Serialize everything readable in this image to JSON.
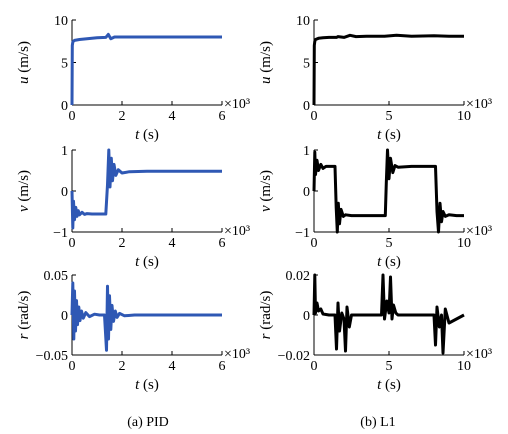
{
  "captions": {
    "left": "(a) PID",
    "right": "(b) L1"
  },
  "colors": {
    "pid": "#2f58b4",
    "l1": "#000000"
  },
  "chart_data": [
    {
      "id": "pid-u",
      "type": "line",
      "color": "#2f58b4",
      "xlabel_var": "t",
      "xlabel_unit": " (s)",
      "ylabel_var": "u",
      "ylabel_unit": " (m/s)",
      "xlim": [
        0,
        6
      ],
      "ylim": [
        0,
        10
      ],
      "xticks": [
        0,
        2,
        4,
        6
      ],
      "yticks": [
        0,
        5,
        10
      ],
      "x_multiplier": "×10³",
      "series": [
        {
          "x": [
            0,
            0.01,
            0.03,
            0.05,
            0.1,
            0.3,
            0.6,
            1.0,
            1.35,
            1.45,
            1.55,
            1.7,
            2.0,
            3.0,
            4.0,
            5.0,
            6.0
          ],
          "y": [
            0,
            7.0,
            7.4,
            7.5,
            7.6,
            7.7,
            7.8,
            7.9,
            7.95,
            8.3,
            7.8,
            8.0,
            8.0,
            8.0,
            8.0,
            8.0,
            8.0
          ]
        }
      ]
    },
    {
      "id": "pid-v",
      "type": "line",
      "color": "#2f58b4",
      "xlabel_var": "t",
      "xlabel_unit": " (s)",
      "ylabel_var": "v",
      "ylabel_unit": " (m/s)",
      "xlim": [
        0,
        6
      ],
      "ylim": [
        -1,
        1
      ],
      "xticks": [
        0,
        2,
        4,
        6
      ],
      "yticks": [
        -1,
        0,
        1
      ],
      "x_multiplier": "×10³",
      "series": [
        {
          "x": [
            0,
            0.03,
            0.06,
            0.1,
            0.15,
            0.2,
            0.25,
            0.3,
            0.4,
            0.5,
            0.6,
            0.8,
            1.0,
            1.2,
            1.35,
            1.42,
            1.47,
            1.52,
            1.57,
            1.62,
            1.68,
            1.75,
            1.85,
            2.0,
            2.3,
            3.0,
            4.0,
            5.0,
            6.0
          ],
          "y": [
            0,
            -0.9,
            -0.25,
            -0.7,
            -0.4,
            -0.62,
            -0.48,
            -0.58,
            -0.52,
            -0.57,
            -0.55,
            -0.56,
            -0.56,
            -0.56,
            -0.56,
            0.15,
            1.0,
            0.1,
            0.8,
            0.25,
            0.65,
            0.38,
            0.52,
            0.44,
            0.47,
            0.48,
            0.48,
            0.48,
            0.48
          ]
        }
      ]
    },
    {
      "id": "pid-r",
      "type": "line",
      "color": "#2f58b4",
      "xlabel_var": "t",
      "xlabel_unit": " (s)",
      "ylabel_var": "r",
      "ylabel_unit": " (rad/s)",
      "xlim": [
        0,
        6
      ],
      "ylim": [
        -0.05,
        0.05
      ],
      "xticks": [
        0,
        2,
        4,
        6
      ],
      "yticks": [
        -0.05,
        0,
        0.05
      ],
      "ytick_labels": [
        "−0.05",
        "0",
        "0.05"
      ],
      "x_multiplier": "×10³",
      "series": [
        {
          "x": [
            0,
            0.03,
            0.07,
            0.1,
            0.14,
            0.18,
            0.22,
            0.27,
            0.32,
            0.38,
            0.45,
            0.55,
            0.7,
            0.9,
            1.1,
            1.3,
            1.38,
            1.42,
            1.46,
            1.5,
            1.55,
            1.6,
            1.66,
            1.73,
            1.8,
            1.9,
            2.1,
            2.5,
            3.0,
            4.0,
            5.0,
            6.0
          ],
          "y": [
            0,
            0.04,
            -0.03,
            0.03,
            -0.02,
            0.018,
            -0.012,
            0.01,
            -0.007,
            0.005,
            -0.004,
            0.003,
            -0.002,
            0.001,
            0,
            0,
            -0.044,
            0.036,
            -0.03,
            0.024,
            -0.018,
            0.012,
            -0.008,
            0.005,
            -0.003,
            0.002,
            -0.001,
            0,
            0,
            0,
            0,
            0
          ]
        }
      ]
    },
    {
      "id": "l1-u",
      "type": "line",
      "color": "#000000",
      "xlabel_var": "t",
      "xlabel_unit": " (s)",
      "ylabel_var": "u",
      "ylabel_unit": " (m/s)",
      "xlim": [
        0,
        10
      ],
      "ylim": [
        0,
        10
      ],
      "xticks": [
        0,
        5,
        10
      ],
      "yticks": [
        0,
        5,
        10
      ],
      "x_multiplier": "×10³",
      "series": [
        {
          "x": [
            0,
            0.02,
            0.05,
            0.1,
            0.3,
            0.6,
            1.0,
            1.5,
            1.6,
            2.0,
            2.4,
            2.8,
            3.5,
            4.7,
            5.5,
            6.5,
            8.0,
            9.0,
            10.0
          ],
          "y": [
            0,
            7.0,
            7.5,
            7.7,
            7.85,
            7.9,
            7.95,
            7.95,
            8.05,
            7.95,
            8.2,
            8.05,
            8.1,
            8.1,
            8.2,
            8.1,
            8.15,
            8.1,
            8.1
          ]
        }
      ]
    },
    {
      "id": "l1-v",
      "type": "line",
      "color": "#000000",
      "xlabel_var": "t",
      "xlabel_unit": " (s)",
      "ylabel_var": "v",
      "ylabel_unit": " (m/s)",
      "xlim": [
        0,
        10
      ],
      "ylim": [
        -1,
        1
      ],
      "xticks": [
        0,
        5,
        10
      ],
      "yticks": [
        -1,
        0,
        1
      ],
      "x_multiplier": "×10³",
      "series": [
        {
          "x": [
            0,
            0.05,
            0.1,
            0.2,
            0.3,
            0.45,
            0.6,
            0.8,
            1.0,
            1.2,
            1.4,
            1.48,
            1.55,
            1.62,
            1.7,
            1.8,
            1.95,
            2.1,
            2.5,
            3.5,
            4.5,
            4.75,
            4.82,
            4.9,
            5.0,
            5.1,
            5.25,
            5.4,
            5.6,
            6.5,
            7.5,
            8.1,
            8.2,
            8.3,
            8.4,
            8.5,
            8.6,
            8.75,
            9.0,
            9.5,
            10.0
          ],
          "y": [
            0,
            0.95,
            0.4,
            0.75,
            0.5,
            0.65,
            0.55,
            0.6,
            0.6,
            0.6,
            0.6,
            -0.4,
            -1.0,
            -0.3,
            -0.8,
            -0.45,
            -0.62,
            -0.58,
            -0.6,
            -0.6,
            -0.6,
            -0.6,
            0.2,
            1.0,
            0.3,
            0.8,
            0.45,
            0.62,
            0.58,
            0.6,
            0.6,
            0.6,
            -0.5,
            -1.0,
            -0.3,
            -0.75,
            -0.5,
            -0.62,
            -0.58,
            -0.6,
            -0.6
          ]
        }
      ]
    },
    {
      "id": "l1-r",
      "type": "line",
      "color": "#000000",
      "xlabel_var": "t",
      "xlabel_unit": " (s)",
      "ylabel_var": "r",
      "ylabel_unit": " (rad/s)",
      "xlim": [
        0,
        10
      ],
      "ylim": [
        -0.02,
        0.02
      ],
      "xticks": [
        0,
        5,
        10
      ],
      "yticks": [
        -0.02,
        0,
        0.02
      ],
      "ytick_labels": [
        "−0.02",
        "0",
        "0.02"
      ],
      "x_multiplier": "×10³",
      "series": [
        {
          "x": [
            0,
            0.05,
            0.1,
            0.2,
            0.3,
            0.45,
            0.6,
            1.0,
            1.4,
            1.5,
            1.6,
            1.7,
            1.85,
            2.0,
            2.1,
            2.2,
            2.35,
            2.5,
            3.5,
            4.5,
            4.6,
            4.7,
            4.85,
            5.0,
            5.1,
            5.2,
            5.3,
            5.45,
            5.6,
            6.5,
            7.5,
            8.0,
            8.1,
            8.2,
            8.35,
            8.5,
            8.6,
            8.75,
            9.0,
            10.0
          ],
          "y": [
            0,
            0.02,
            0.001,
            0.006,
            0.002,
            0.003,
            0.0005,
            0,
            0,
            -0.017,
            0.006,
            -0.008,
            0.001,
            -0.002,
            -0.018,
            0.004,
            -0.006,
            0,
            0,
            0,
            0.02,
            -0.002,
            0.007,
            0.001,
            0.019,
            -0.002,
            0.005,
            0.001,
            0,
            0,
            0,
            0,
            -0.015,
            0.004,
            -0.006,
            0,
            -0.019,
            0.003,
            -0.004,
            0
          ]
        }
      ]
    }
  ]
}
